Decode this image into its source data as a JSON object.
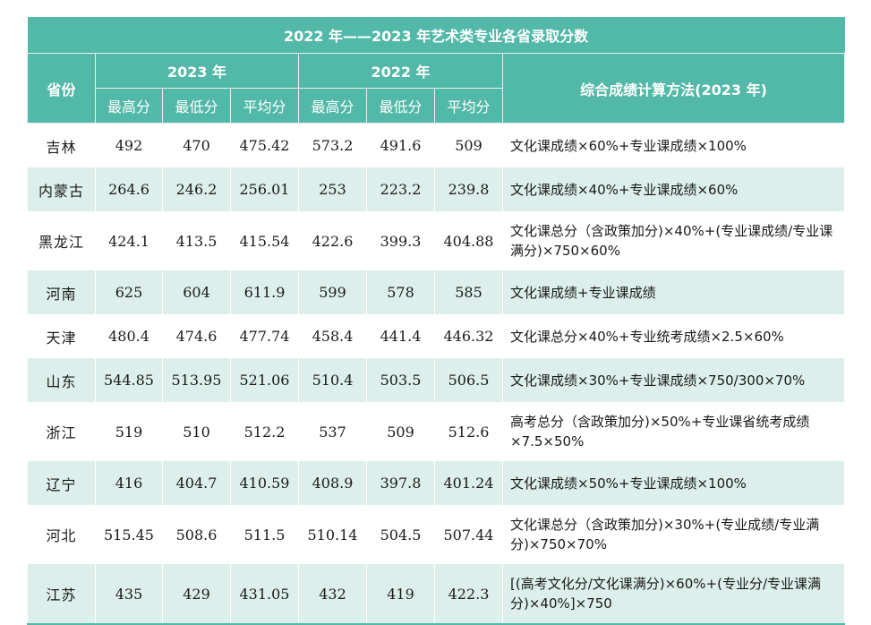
{
  "table": {
    "title": "2022 年——2023 年艺术类专业各省录取分数",
    "header": {
      "province": "省份",
      "year_2023": "2023 年",
      "year_2022": "2022 年",
      "method": "综合成绩计算方法(2023 年)",
      "max": "最高分",
      "min": "最低分",
      "avg": "平均分"
    },
    "rows": [
      {
        "province": "吉林",
        "max23": "492",
        "min23": "470",
        "avg23": "475.42",
        "max22": "573.2",
        "min22": "491.6",
        "avg22": "509",
        "method": "文化课成绩×60%+专业课成绩×100%"
      },
      {
        "province": "内蒙古",
        "max23": "264.6",
        "min23": "246.2",
        "avg23": "256.01",
        "max22": "253",
        "min22": "223.2",
        "avg22": "239.8",
        "method": "文化课成绩×40%+专业课成绩×60%"
      },
      {
        "province": "黑龙江",
        "max23": "424.1",
        "min23": "413.5",
        "avg23": "415.54",
        "max22": "422.6",
        "min22": "399.3",
        "avg22": "404.88",
        "method": "文化课总分（含政策加分)×40%+(专业课成绩/专业课满分)×750×60%"
      },
      {
        "province": "河南",
        "max23": "625",
        "min23": "604",
        "avg23": "611.9",
        "max22": "599",
        "min22": "578",
        "avg22": "585",
        "method": "文化课成绩+专业课成绩"
      },
      {
        "province": "天津",
        "max23": "480.4",
        "min23": "474.6",
        "avg23": "477.74",
        "max22": "458.4",
        "min22": "441.4",
        "avg22": "446.32",
        "method": "文化课总分×40%+专业统考成绩×2.5×60%"
      },
      {
        "province": "山东",
        "max23": "544.85",
        "min23": "513.95",
        "avg23": "521.06",
        "max22": "510.4",
        "min22": "503.5",
        "avg22": "506.5",
        "method": "文化课成绩×30%+专业课成绩×750/300×70%"
      },
      {
        "province": "浙江",
        "max23": "519",
        "min23": "510",
        "avg23": "512.2",
        "max22": "537",
        "min22": "509",
        "avg22": "512.6",
        "method": "高考总分（含政策加分)×50%+专业课省统考成绩×7.5×50%"
      },
      {
        "province": "辽宁",
        "max23": "416",
        "min23": "404.7",
        "avg23": "410.59",
        "max22": "408.9",
        "min22": "397.8",
        "avg22": "401.24",
        "method": "文化课成绩×50%+专业课成绩×100%"
      },
      {
        "province": "河北",
        "max23": "515.45",
        "min23": "508.6",
        "avg23": "511.5",
        "max22": "510.14",
        "min22": "504.5",
        "avg22": "507.44",
        "method": "文化课总分（含政策加分)×30%+(专业成绩/专业满分)×750×70%"
      },
      {
        "province": "江苏",
        "max23": "435",
        "min23": "429",
        "avg23": "431.05",
        "max22": "432",
        "min22": "419",
        "avg22": "422.3",
        "method": "[(高考文化分/文化课满分)×60%+(专业分/专业课满分)×40%]×750"
      }
    ]
  }
}
